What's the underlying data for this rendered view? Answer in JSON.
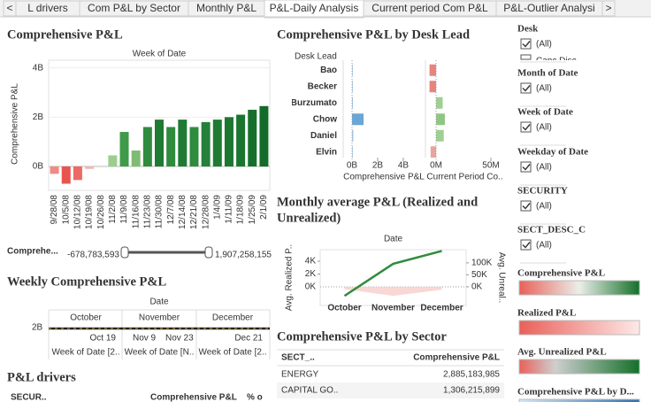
{
  "tabs": {
    "items": [
      "<",
      "L drivers",
      "Com P&L by Sector",
      "Monthly P&L",
      "P&L-Daily Analysis",
      "Current period Com P&L",
      "P&L-Outlier Analysi",
      ">"
    ],
    "active": 4
  },
  "chart_data": [
    {
      "type": "bar",
      "title": "Comprehensive P&L",
      "header": "Week of Date",
      "ylabel": "Comprehensive P&L",
      "categories": [
        "9/28/08",
        "10/5/08",
        "10/12/08",
        "10/19/08",
        "10/26/08",
        "11/2/08",
        "11/9/08",
        "11/16/08",
        "11/23/08",
        "11/30/08",
        "12/7/08",
        "12/14/08",
        "12/21/08",
        "12/28/08",
        "1/4/09",
        "1/11/09",
        "1/18/09",
        "1/25/09",
        "2/1/09"
      ],
      "values": [
        -300000000,
        -700000000,
        -550000000,
        -100000000,
        50000000,
        450000000,
        1400000000,
        650000000,
        1600000000,
        1900000000,
        1600000000,
        1900000000,
        1600000000,
        1800000000,
        1900000000,
        2000000000,
        2100000000,
        2300000000,
        2450000000
      ],
      "colors": [
        "#f08a84",
        "#e8534f",
        "#ec6a63",
        "#f4b6b0",
        "#dde9d8",
        "#9ccd8f",
        "#3f9a4a",
        "#7fbc73",
        "#2f8b3e",
        "#1f7a33",
        "#2f8b3e",
        "#1f7a33",
        "#2f8b3e",
        "#25803a",
        "#1f7a33",
        "#1c7731",
        "#1a752f",
        "#16702c",
        "#136b29"
      ],
      "ylim": [
        -970000000,
        4310000000
      ],
      "yticks": [
        {
          "value": 0,
          "label": "0B"
        },
        {
          "value": 2000000000,
          "label": "2B"
        },
        {
          "value": 4000000000,
          "label": "4B"
        }
      ],
      "grid": true
    },
    {
      "type": "hbar",
      "title": "Comprehensive P&L by Desk Lead",
      "header": "Desk Lead",
      "categories": [
        "Bao",
        "Becker",
        "Burzumato",
        "Chow",
        "Daniel",
        "Elvin"
      ],
      "series": [
        {
          "name": "Comprehensive P&L",
          "values": [
            10000000,
            15000000,
            60000000,
            900000000,
            100000000,
            20000000
          ],
          "colors": [
            "#b4cfe8",
            "#b4cfe8",
            "#a8c8e6",
            "#6aa6d6",
            "#a8c8e6",
            "#b4cfe8"
          ],
          "xlim": [
            -690000000,
            5660000000
          ],
          "xticks": [
            {
              "value": 0,
              "label": "0B"
            },
            {
              "value": 2000000000,
              "label": "2B"
            },
            {
              "value": 4000000000,
              "label": "4B"
            }
          ]
        },
        {
          "name": "Current Period Co..",
          "values": [
            -6000000,
            -6000000,
            6000000,
            8000000,
            7000000,
            -5000000
          ],
          "colors": [
            "#e8837d",
            "#e8837d",
            "#9fcf92",
            "#8fc683",
            "#9fcf92",
            "#e8a39d"
          ],
          "xlim": [
            -9700000,
            62100000
          ],
          "xticks": [
            {
              "value": 0,
              "label": "0M"
            },
            {
              "value": 50000000,
              "label": "50M"
            }
          ]
        }
      ]
    },
    {
      "type": "line",
      "title": "Monthly average P&L (Realized and Unrealized)",
      "header": "Date",
      "ylabel": "Avg. Realized P..",
      "y2label": "Avg. Unreal..",
      "categories": [
        "October",
        "November",
        "December"
      ],
      "series": [
        {
          "kind": "area",
          "axis": "y2",
          "color": "#f6cdc9",
          "values": [
            -10000,
            -38000,
            -12000
          ]
        },
        {
          "kind": "line",
          "color": "#2e8b3d",
          "values": [
            -1400,
            3600,
            5600
          ]
        }
      ],
      "ylim": [
        -2900,
        5800
      ],
      "yticks": [
        {
          "value": 0,
          "label": "0K"
        },
        {
          "value": 2000,
          "label": "2K"
        },
        {
          "value": 4000,
          "label": "4K"
        }
      ],
      "y2lim": [
        -78000,
        155000
      ],
      "y2ticks": [
        {
          "value": 0,
          "label": "0K"
        },
        {
          "value": 50000,
          "label": "50K"
        },
        {
          "value": 100000,
          "label": "100K"
        }
      ]
    }
  ],
  "slider": {
    "label": "Comprehe...",
    "min": "-678,783,593",
    "max": "1,907,258,155"
  },
  "weekly": {
    "title": "Weekly Comprehensive P&L",
    "header": "Date",
    "tick": "2B",
    "months": [
      "October",
      "November",
      "December"
    ],
    "dates": [
      "Oct 19",
      "Nov 9",
      "Nov 23",
      "Dec 21"
    ],
    "footers": [
      "Week of Date [2..",
      "Week of Date [N..",
      "Week of Date [2.."
    ]
  },
  "drivers": {
    "title": "P&L drivers",
    "columns": [
      "SECUR..",
      "Comprehensive P&L",
      "% o"
    ]
  },
  "sector": {
    "title": "Comprehensive P&L by Sector",
    "columns": [
      "SECT_..",
      "Comprehensive P&L"
    ],
    "rows": [
      [
        "ENERGY",
        "2,885,183,985"
      ],
      [
        "CAPITAL GO..",
        "1,306,215,899"
      ]
    ]
  },
  "filters": [
    {
      "title": "Desk",
      "option": "(All)",
      "extra": "Capc Disc"
    },
    {
      "title": "Month of Date",
      "option": "(All)"
    },
    {
      "title": "Week of Date",
      "option": "(All)"
    },
    {
      "title": "Weekday of Date",
      "option": "(All)"
    },
    {
      "title": "SECURITY",
      "option": "(All)"
    },
    {
      "title": "SECT_DESC_C",
      "option": "(All)"
    }
  ],
  "legends": [
    "Comprehensive P&L",
    "Realized P&L",
    "Avg. Unrealized P&L",
    "Comprehensive P&L by D..."
  ]
}
